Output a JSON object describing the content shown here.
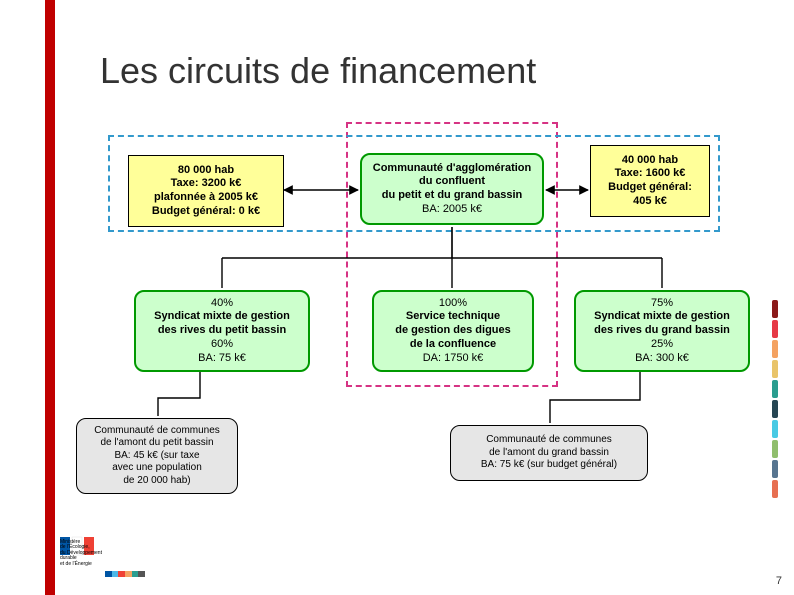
{
  "title": "Les circuits de financement",
  "page_number": "7",
  "colors": {
    "vbar": "#c00000",
    "dashed_magenta": "#d63384",
    "dashed_blue": "#3399cc",
    "box_yellow_bg": "#ffff99",
    "box_yellow_border": "#000000",
    "box_green_bg": "#ccffcc",
    "box_green_border": "#009900",
    "box_grey_bg": "#e6e6e6",
    "box_grey_border": "#000000",
    "connector": "#000000"
  },
  "top_left": {
    "line1": "80 000 hab",
    "line2": "Taxe: 3200 k€",
    "line3": "plafonnée à 2005 k€",
    "line4": "Budget général: 0 k€"
  },
  "top_center": {
    "line1": "Communauté d'agglomération",
    "line2": "du confluent",
    "line3": "du petit et du grand bassin",
    "line4": "BA: 2005 k€"
  },
  "top_right": {
    "line1": "40 000 hab",
    "line2": "Taxe: 1600 k€",
    "line3": "Budget général:",
    "line4": "405 k€"
  },
  "mid_left": {
    "line1": "40%",
    "line2": "Syndicat mixte de gestion",
    "line3": "des rives du petit bassin",
    "line4": "60%",
    "line5": "BA: 75 k€"
  },
  "mid_center": {
    "line1": "100%",
    "line2": "Service technique",
    "line3": "de gestion des digues",
    "line4": "de la confluence",
    "line5": "DA: 1750 k€"
  },
  "mid_right": {
    "line1": "75%",
    "line2": "Syndicat mixte de gestion",
    "line3": "des rives du grand bassin",
    "line4": "25%",
    "line5": "BA: 300 k€"
  },
  "bot_left": {
    "line1": "Communauté de communes",
    "line2": "de l'amont du petit bassin",
    "line3": "BA: 45 k€ (sur taxe",
    "line4": "avec une population",
    "line5": "de 20 000 hab)"
  },
  "bot_right": {
    "line1": "Communauté de communes",
    "line2": "de l'amont du grand bassin",
    "line3": "BA: 75 k€ (sur budget général)"
  },
  "side_stripe_colors": [
    "#8b1a1a",
    "#e63946",
    "#f4a261",
    "#e9c46a",
    "#2a9d8f",
    "#264653",
    "#48cae4",
    "#90be6d",
    "#577590",
    "#e76f51"
  ],
  "logo_bar_colors": [
    "#0055a4",
    "#ffffff",
    "#ef4135",
    "#999",
    "#666",
    "#333"
  ]
}
